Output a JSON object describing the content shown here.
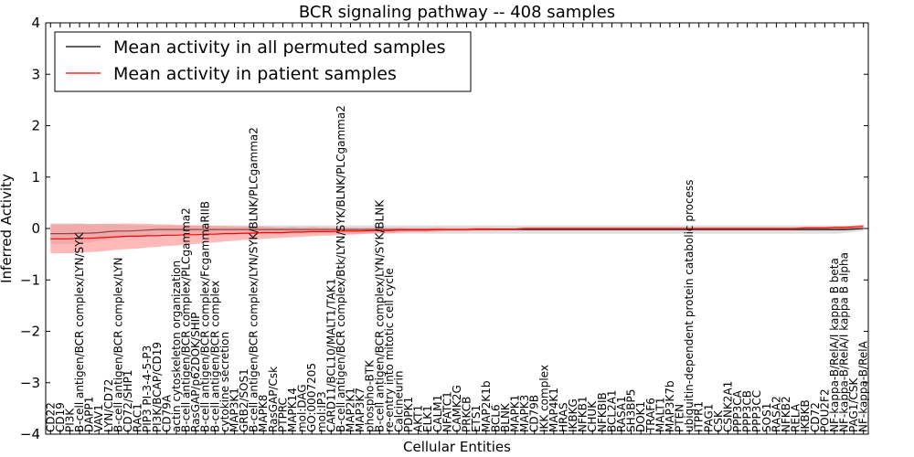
{
  "chart_data": {
    "type": "line",
    "title": "BCR signaling pathway -- 408 samples",
    "xlabel": "Cellular Entities",
    "ylabel": "Inferred Activity",
    "ylim": [
      -4,
      4
    ],
    "yticks": [
      -4,
      -3,
      -2,
      -1,
      0,
      1,
      2,
      3,
      4
    ],
    "ytick_labels": [
      "−4",
      "−3",
      "−2",
      "−1",
      "0",
      "1",
      "2",
      "3",
      "4"
    ],
    "grid": false,
    "legend_position": "top-left",
    "colors": {
      "permuted_line": "#000000",
      "permuted_band": "#c8c8c8",
      "patient_line": "#ff0000",
      "patient_band": "#ff8080"
    },
    "entities": [
      "CD22",
      "CD19",
      "PI3K",
      "B-cell antigen/BCR complex/LYN/SYK",
      "DAPP1",
      "VAV1",
      "LYN/CD72",
      "B-cell antigen/BCR complex/LYN",
      "CD72/SHP1",
      "RAC1",
      "PIP3 PI-3-4-5-P3",
      "PI3K/BCAP/CD19",
      "CD79A",
      "actin cytoskeleton organization",
      "B-cell antigen/BCR complex/PLCgamma2",
      "RasGAP/p62DOK/SHIP",
      "B-cell antigen/BCR complex/FcgammaRIIB",
      "B-cell antigen/BCR complex",
      "cytokine secretion",
      "MAP3K1",
      "GRB2/SOS1",
      "B-cell antigen/BCR complex/LYN/SYK/BLNK/PLCgamma2",
      "MAPK8",
      "RasGAP/Csk",
      "PTPRC",
      "MAPK14",
      "mol:DAG",
      "GO:0007205",
      "mol:IP3",
      "CARD11/BCL10/MALT1/TAK1",
      "B-cell antigen/BCR complex/Btk/LYN/SYK/BLNK/PLCgamma2",
      "MAP2K1",
      "MAP3K7",
      "phospho-BTK",
      "B-cell antigen/BCR complex/LYN/SYK/BLNK",
      "re-entry into mitotic cell cycle",
      "Calcineurin",
      "PDPK1",
      "AKT1",
      "ELK1",
      "CALM1",
      "NFATC1",
      "CAMK2G",
      "PRKCB",
      "ETS1",
      "MAP2K1b",
      "BCL6",
      "BLNK",
      "MAPK1",
      "MAPK3",
      "CD79B",
      "IKK complex",
      "MAP4K1",
      "HRAS",
      "IKBKG",
      "NFKB1",
      "CHUK",
      "NFKBIB",
      "BCL2A1",
      "RASA1",
      "SH3BP5",
      "DOK1",
      "TRAF6",
      "MALT1",
      "MAP3K7b",
      "PTEN",
      "ubiquitin-dependent protein catabolic process",
      "ITPR1",
      "PAG1",
      "CSK",
      "CSNK2A1",
      "PPP3CA",
      "PPP3CB",
      "PPP3CC",
      "SOS1",
      "RASA2",
      "NFKB2",
      "RELA",
      "IKBKB",
      "CD72",
      "POU2F2",
      "NF-kappa-B/RelA/I kappa B beta",
      "NF-kappa-B/RelA/I kappa B alpha",
      "PAG1/CSK",
      "NF-kappa-B/RelA"
    ],
    "series": [
      {
        "name": "Mean activity in all permuted samples",
        "values": [
          -0.1,
          -0.1,
          -0.1,
          -0.09,
          -0.09,
          -0.08,
          -0.06,
          -0.05,
          -0.05,
          -0.04,
          -0.03,
          -0.02,
          -0.02,
          -0.02,
          -0.02,
          -0.02,
          -0.02,
          -0.02,
          -0.02,
          -0.02,
          -0.02,
          -0.02,
          -0.02,
          -0.02,
          -0.02,
          -0.02,
          -0.02,
          -0.02,
          -0.02,
          -0.02,
          -0.02,
          -0.02,
          -0.02,
          -0.02,
          -0.02,
          -0.02,
          -0.02,
          -0.02,
          -0.02,
          -0.02,
          -0.02,
          -0.02,
          -0.02,
          -0.02,
          -0.02,
          -0.02,
          -0.02,
          -0.02,
          -0.02,
          -0.02,
          -0.02,
          -0.02,
          -0.02,
          -0.02,
          -0.02,
          -0.02,
          -0.02,
          -0.02,
          -0.02,
          -0.02,
          -0.02,
          -0.02,
          -0.02,
          -0.02,
          -0.02,
          -0.02,
          -0.02,
          -0.02,
          -0.02,
          -0.02,
          -0.02,
          -0.02,
          -0.02,
          -0.02,
          -0.02,
          -0.02,
          -0.02,
          -0.02,
          -0.02,
          -0.02,
          -0.02,
          -0.02,
          -0.02,
          -0.01,
          0.0
        ],
        "band": [
          0.2,
          0.2,
          0.2,
          0.19,
          0.18,
          0.16,
          0.15,
          0.13,
          0.12,
          0.1,
          0.09,
          0.08,
          0.08,
          0.08,
          0.08,
          0.08,
          0.08,
          0.08,
          0.08,
          0.08,
          0.08,
          0.08,
          0.08,
          0.08,
          0.08,
          0.08,
          0.08,
          0.08,
          0.08,
          0.08,
          0.08,
          0.08,
          0.08,
          0.08,
          0.08,
          0.08,
          0.08,
          0.08,
          0.08,
          0.08,
          0.08,
          0.08,
          0.08,
          0.08,
          0.08,
          0.08,
          0.08,
          0.08,
          0.08,
          0.08,
          0.08,
          0.08,
          0.08,
          0.08,
          0.08,
          0.08,
          0.08,
          0.08,
          0.08,
          0.08,
          0.08,
          0.08,
          0.08,
          0.08,
          0.08,
          0.08,
          0.08,
          0.08,
          0.08,
          0.08,
          0.08,
          0.08,
          0.08,
          0.08,
          0.08,
          0.08,
          0.08,
          0.08,
          0.08,
          0.08,
          0.08,
          0.08,
          0.07,
          0.06,
          0.05
        ]
      },
      {
        "name": "Mean activity in patient samples",
        "values": [
          -0.2,
          -0.2,
          -0.2,
          -0.19,
          -0.19,
          -0.18,
          -0.17,
          -0.16,
          -0.15,
          -0.15,
          -0.14,
          -0.14,
          -0.13,
          -0.13,
          -0.12,
          -0.12,
          -0.11,
          -0.11,
          -0.1,
          -0.1,
          -0.09,
          -0.09,
          -0.08,
          -0.08,
          -0.08,
          -0.07,
          -0.07,
          -0.06,
          -0.06,
          -0.06,
          -0.05,
          -0.05,
          -0.05,
          -0.04,
          -0.04,
          -0.04,
          -0.03,
          -0.03,
          -0.03,
          -0.03,
          -0.02,
          -0.02,
          -0.02,
          -0.02,
          -0.01,
          -0.01,
          -0.01,
          -0.01,
          -0.01,
          0.0,
          0.0,
          0.0,
          0.0,
          0.0,
          0.0,
          0.0,
          0.0,
          0.0,
          0.0,
          0.0,
          0.0,
          0.0,
          0.0,
          0.0,
          0.0,
          0.0,
          0.0,
          0.0,
          0.0,
          0.0,
          0.0,
          0.0,
          0.0,
          0.0,
          0.0,
          0.0,
          0.0,
          0.0,
          0.01,
          0.01,
          0.01,
          0.02,
          0.02,
          0.03,
          0.04
        ],
        "band": [
          0.28,
          0.28,
          0.28,
          0.28,
          0.27,
          0.27,
          0.26,
          0.25,
          0.25,
          0.24,
          0.23,
          0.22,
          0.21,
          0.2,
          0.19,
          0.18,
          0.17,
          0.16,
          0.15,
          0.14,
          0.13,
          0.13,
          0.12,
          0.11,
          0.1,
          0.1,
          0.09,
          0.09,
          0.08,
          0.08,
          0.07,
          0.07,
          0.06,
          0.06,
          0.05,
          0.05,
          0.05,
          0.04,
          0.04,
          0.04,
          0.04,
          0.03,
          0.03,
          0.03,
          0.03,
          0.03,
          0.02,
          0.02,
          0.02,
          0.02,
          0.02,
          0.02,
          0.02,
          0.02,
          0.02,
          0.02,
          0.02,
          0.02,
          0.02,
          0.02,
          0.02,
          0.02,
          0.02,
          0.02,
          0.02,
          0.02,
          0.02,
          0.02,
          0.02,
          0.02,
          0.02,
          0.02,
          0.02,
          0.02,
          0.02,
          0.02,
          0.02,
          0.02,
          0.02,
          0.02,
          0.02,
          0.02,
          0.03,
          0.03,
          0.04
        ]
      }
    ]
  }
}
